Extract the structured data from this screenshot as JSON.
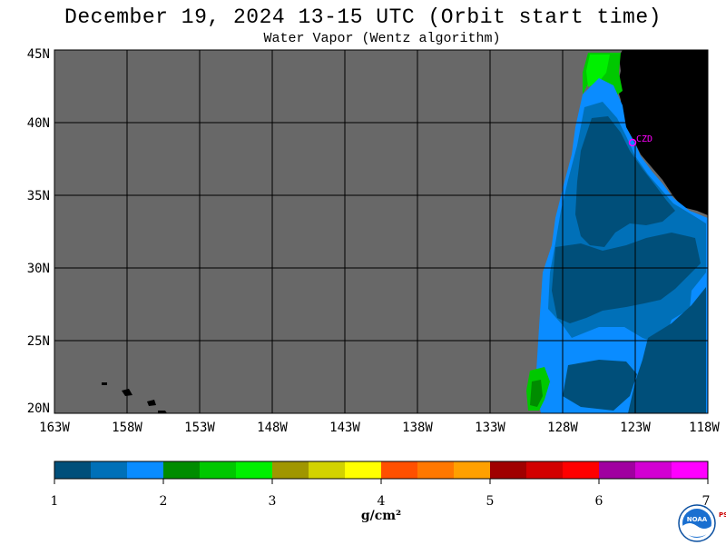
{
  "title": "December 19, 2024  13-15 UTC  (Orbit start time)",
  "subtitle": "Water Vapor (Wentz algorithm)",
  "map": {
    "lat_labels": [
      "45N",
      "40N",
      "35N",
      "30N",
      "25N",
      "20N"
    ],
    "lon_labels": [
      "163W",
      "158W",
      "153W",
      "148W",
      "143W",
      "138W",
      "133W",
      "128W",
      "123W",
      "118W"
    ],
    "lat_range": [
      20,
      45
    ],
    "lon_range": [
      -163,
      -118
    ],
    "station_label": "CZD",
    "colors": {
      "no_data": "#686868",
      "land": "#000000",
      "grid": "#000000",
      "station": "#ff00ff"
    }
  },
  "colorbar": {
    "tick_labels": [
      "1",
      "2",
      "3",
      "4",
      "5",
      "6",
      "7"
    ],
    "range": [
      1,
      7
    ],
    "units": "g/cm²",
    "colors": [
      "#004f7a",
      "#0070b8",
      "#0a8cff",
      "#008c00",
      "#00c800",
      "#00f000",
      "#a09600",
      "#d2d200",
      "#ffff00",
      "#ff5000",
      "#ff7800",
      "#ffa000",
      "#a00000",
      "#d20000",
      "#ff0000",
      "#a000a0",
      "#d200d2",
      "#ff00ff"
    ]
  },
  "logo": {
    "text": "NOAA",
    "side_text": "PSL"
  }
}
